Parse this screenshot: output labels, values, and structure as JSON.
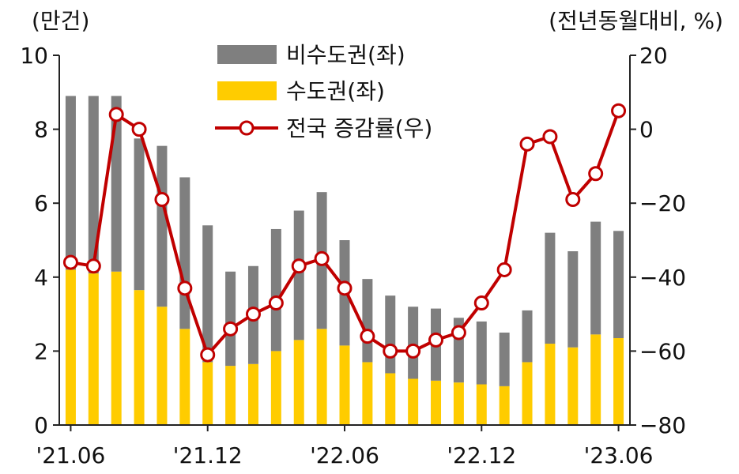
{
  "chart_data": {
    "type": "bar+line",
    "left_unit": "(만건)",
    "right_unit": "(전년동월대비, %)",
    "left_ylim": [
      0,
      10
    ],
    "left_ticks": [
      "0",
      "2",
      "4",
      "6",
      "8",
      "10"
    ],
    "right_ylim": [
      -80,
      20
    ],
    "right_ticks": [
      "-80",
      "-60",
      "-40",
      "-20",
      "0",
      "20"
    ],
    "x_tick_labels": [
      "'21.06",
      "'21.12",
      "'22.06",
      "'22.12",
      "'23.06"
    ],
    "x_tick_label_indices": [
      0,
      6,
      12,
      18,
      24
    ],
    "grid": false,
    "legend_position": "top-center",
    "n_periods": 25,
    "series": [
      {
        "name": "비수도권(좌)",
        "kind": "bar-stack",
        "color": "#7f7f7f",
        "values": [
          4.7,
          4.8,
          4.75,
          4.1,
          4.35,
          4.1,
          3.7,
          2.55,
          2.65,
          3.3,
          3.5,
          3.7,
          2.85,
          2.25,
          2.1,
          1.95,
          1.95,
          1.75,
          1.7,
          1.45,
          1.4,
          3.0,
          2.6,
          3.05,
          2.9
        ]
      },
      {
        "name": "수도권(좌)",
        "kind": "bar-stack",
        "color": "#ffcc00",
        "values": [
          4.2,
          4.1,
          4.15,
          3.65,
          3.2,
          2.6,
          1.7,
          1.6,
          1.65,
          2.0,
          2.3,
          2.6,
          2.15,
          1.7,
          1.4,
          1.25,
          1.2,
          1.15,
          1.1,
          1.05,
          1.7,
          2.2,
          2.1,
          2.45,
          2.35
        ]
      },
      {
        "name": "전국 증감률(우)",
        "kind": "line",
        "axis": "right",
        "color": "#c00000",
        "values": [
          -36,
          -37,
          4,
          0,
          -19,
          -43,
          -61,
          -54,
          -50,
          -47,
          -37,
          -35,
          -43,
          -56,
          -60,
          -60,
          -57,
          -55,
          -47,
          -38,
          -4,
          -2,
          -19,
          -12,
          5
        ]
      }
    ]
  }
}
